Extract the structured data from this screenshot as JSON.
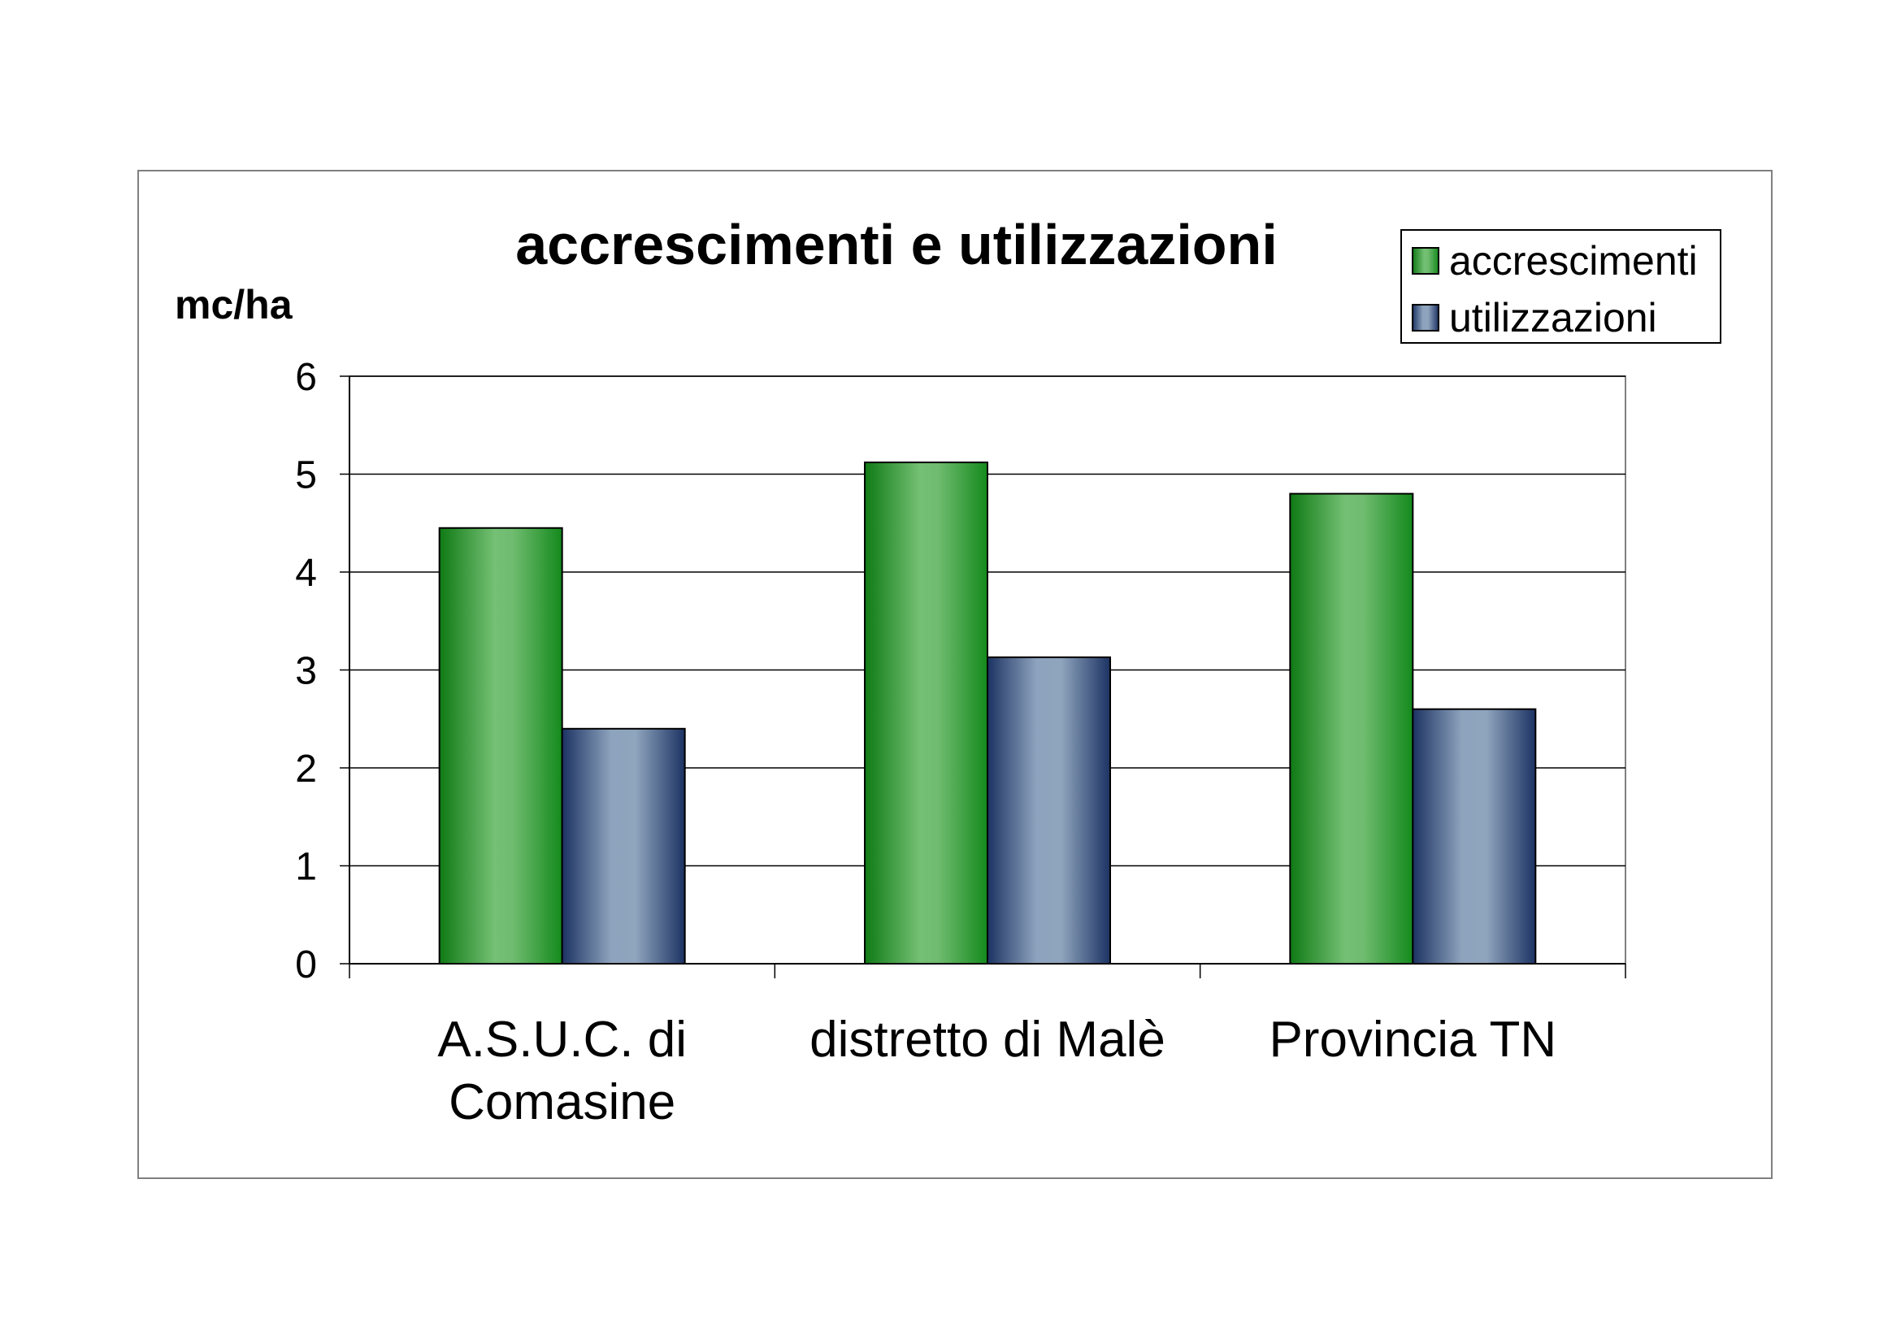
{
  "chart_data": {
    "type": "bar",
    "title": "accrescimenti e utilizzazioni",
    "ylabel": "mc/ha",
    "xlabel": "",
    "categories": [
      [
        "A.S.U.C. di",
        "Comasine"
      ],
      [
        "distretto di Malè"
      ],
      [
        "Provincia TN"
      ]
    ],
    "series": [
      {
        "name": "accrescimenti",
        "values": [
          4.45,
          5.12,
          4.8
        ]
      },
      {
        "name": "utilizzazioni",
        "values": [
          2.4,
          3.13,
          2.6
        ]
      }
    ],
    "ylim": [
      0,
      6
    ],
    "yticks": [
      0,
      1,
      2,
      3,
      4,
      5,
      6
    ],
    "grid": true,
    "legend_position": "top-right"
  },
  "colors": {
    "accrescimenti": "#2e8b2e",
    "utilizzazioni": "#8fa3bb"
  }
}
